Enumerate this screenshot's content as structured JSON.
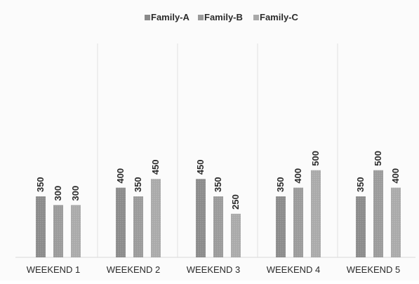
{
  "chart_data": {
    "type": "bar",
    "title": "",
    "xlabel": "",
    "ylabel": "",
    "categories": [
      "WEEKEND 1",
      "WEEKEND 2",
      "WEEKEND 3",
      "WEEKEND 4",
      "WEEKEND 5"
    ],
    "series": [
      {
        "name": "Family-A",
        "values": [
          350,
          400,
          450,
          350,
          350
        ],
        "color": "#8a8a8a"
      },
      {
        "name": "Family-B",
        "values": [
          300,
          350,
          350,
          400,
          500
        ],
        "color": "#9a9a9a"
      },
      {
        "name": "Family-C",
        "values": [
          300,
          450,
          250,
          500,
          400
        ],
        "color": "#a9a9a9"
      }
    ],
    "ylim": [
      0,
      600
    ],
    "grid": false,
    "legend_position": "top-center",
    "data_labels": true
  }
}
